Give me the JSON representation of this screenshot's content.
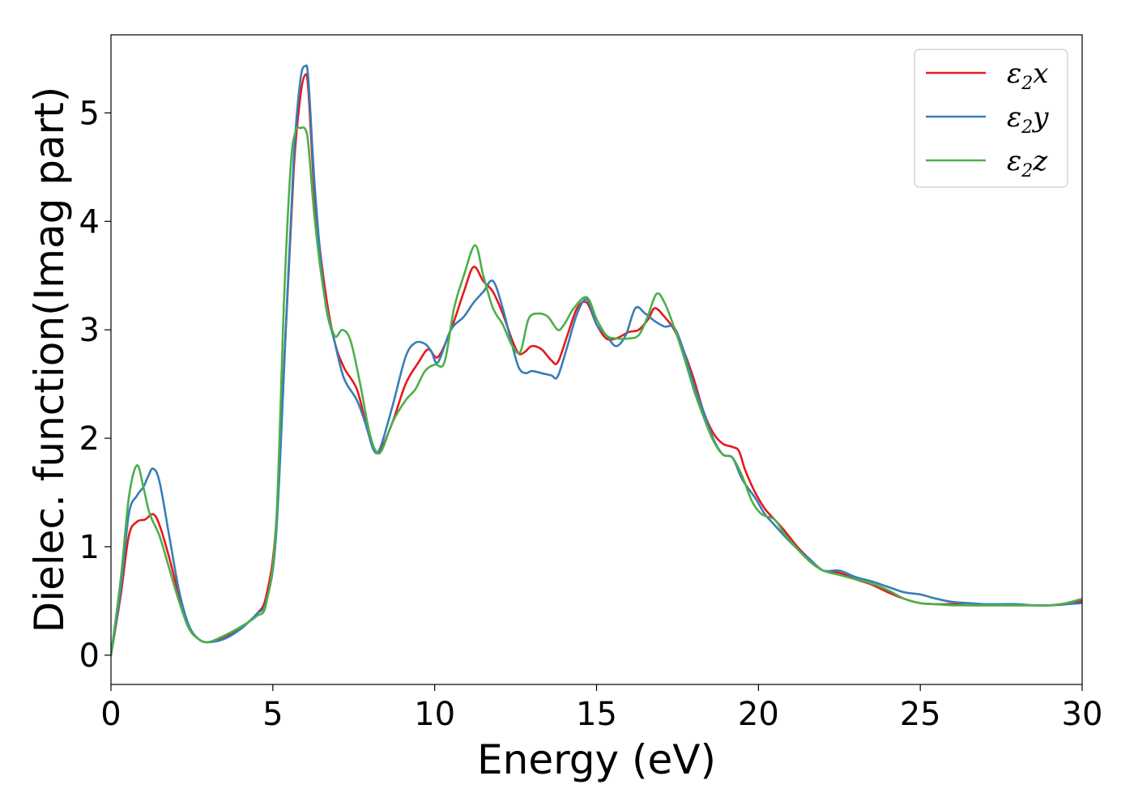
{
  "chart_data": {
    "type": "line",
    "xlabel": "Energy (eV)",
    "ylabel": "Dielec. function(Imag part)",
    "xlim": [
      0,
      30
    ],
    "ylim": [
      -0.27,
      5.72
    ],
    "xticks": [
      0,
      5,
      10,
      15,
      20,
      25,
      30
    ],
    "yticks": [
      0,
      1,
      2,
      3,
      4,
      5
    ],
    "grid": false,
    "legend_position": "top-right",
    "series": [
      {
        "name": "ε2x",
        "legend_base": "ε",
        "legend_sub": "2",
        "legend_tail": "x",
        "color": "#e41a1c",
        "x": [
          0,
          0.3,
          0.55,
          0.8,
          1.05,
          1.3,
          1.5,
          1.8,
          2.1,
          2.4,
          2.7,
          3.0,
          3.5,
          4.0,
          4.5,
          4.8,
          5.1,
          5.4,
          5.65,
          5.85,
          6.0,
          6.1,
          6.3,
          6.6,
          6.9,
          7.2,
          7.6,
          7.9,
          8.1,
          8.3,
          8.7,
          9.1,
          9.5,
          9.8,
          10.1,
          10.5,
          10.9,
          11.2,
          11.5,
          11.8,
          12.1,
          12.4,
          12.6,
          12.8,
          13.0,
          13.3,
          13.6,
          13.8,
          14.1,
          14.4,
          14.7,
          15.0,
          15.3,
          15.6,
          16.0,
          16.3,
          16.6,
          16.8,
          17.1,
          17.4,
          17.7,
          18.0,
          18.3,
          18.6,
          18.9,
          19.2,
          19.4,
          19.6,
          19.9,
          20.2,
          20.5,
          20.8,
          21.2,
          21.6,
          22.0,
          22.5,
          23.0,
          23.5,
          24.0,
          24.5,
          25.0,
          25.5,
          26.0,
          26.5,
          27.0,
          27.5,
          28.0,
          28.5,
          29.0,
          29.5,
          30.0
        ],
        "y": [
          0.0,
          0.55,
          1.1,
          1.23,
          1.25,
          1.3,
          1.2,
          0.9,
          0.55,
          0.27,
          0.15,
          0.12,
          0.17,
          0.25,
          0.38,
          0.55,
          1.2,
          3.0,
          4.5,
          5.15,
          5.35,
          5.2,
          4.2,
          3.4,
          2.9,
          2.65,
          2.45,
          2.1,
          1.92,
          1.88,
          2.15,
          2.5,
          2.7,
          2.82,
          2.75,
          3.0,
          3.35,
          3.58,
          3.45,
          3.35,
          3.15,
          2.9,
          2.78,
          2.8,
          2.85,
          2.82,
          2.72,
          2.7,
          2.95,
          3.2,
          3.25,
          3.05,
          2.92,
          2.92,
          2.98,
          3.0,
          3.1,
          3.2,
          3.12,
          3.0,
          2.8,
          2.55,
          2.25,
          2.05,
          1.95,
          1.92,
          1.88,
          1.7,
          1.5,
          1.35,
          1.25,
          1.15,
          1.0,
          0.88,
          0.78,
          0.76,
          0.7,
          0.65,
          0.58,
          0.52,
          0.48,
          0.47,
          0.47,
          0.46,
          0.46,
          0.46,
          0.46,
          0.46,
          0.46,
          0.47,
          0.5
        ]
      },
      {
        "name": "ε2y",
        "legend_base": "ε",
        "legend_sub": "2",
        "legend_tail": "y",
        "color": "#377eb8",
        "x": [
          0,
          0.3,
          0.55,
          0.8,
          1.0,
          1.15,
          1.3,
          1.5,
          1.8,
          2.1,
          2.4,
          2.7,
          3.0,
          3.5,
          4.0,
          4.5,
          4.8,
          5.1,
          5.4,
          5.65,
          5.85,
          6.0,
          6.1,
          6.3,
          6.6,
          6.9,
          7.2,
          7.6,
          7.9,
          8.1,
          8.3,
          8.7,
          9.1,
          9.4,
          9.7,
          9.9,
          10.1,
          10.5,
          10.9,
          11.2,
          11.5,
          11.8,
          12.1,
          12.4,
          12.6,
          12.8,
          13.0,
          13.3,
          13.6,
          13.8,
          14.1,
          14.4,
          14.7,
          15.0,
          15.3,
          15.6,
          15.9,
          16.2,
          16.5,
          16.8,
          17.1,
          17.4,
          17.7,
          18.0,
          18.3,
          18.6,
          18.9,
          19.2,
          19.5,
          19.9,
          20.2,
          20.5,
          20.8,
          21.2,
          21.6,
          22.0,
          22.5,
          23.0,
          23.5,
          24.0,
          24.5,
          25.0,
          25.5,
          26.0,
          26.5,
          27.0,
          27.5,
          28.0,
          28.5,
          29.0,
          29.5,
          30.0
        ],
        "y": [
          0.0,
          0.6,
          1.3,
          1.47,
          1.55,
          1.65,
          1.72,
          1.6,
          1.1,
          0.6,
          0.28,
          0.15,
          0.12,
          0.15,
          0.24,
          0.38,
          0.5,
          1.1,
          3.0,
          4.6,
          5.3,
          5.43,
          5.3,
          4.3,
          3.3,
          2.9,
          2.55,
          2.35,
          2.1,
          1.9,
          1.9,
          2.3,
          2.75,
          2.88,
          2.87,
          2.8,
          2.7,
          3.0,
          3.12,
          3.25,
          3.35,
          3.45,
          3.2,
          2.85,
          2.65,
          2.6,
          2.62,
          2.6,
          2.58,
          2.57,
          2.85,
          3.15,
          3.28,
          3.05,
          2.95,
          2.85,
          2.95,
          3.2,
          3.15,
          3.08,
          3.03,
          3.02,
          2.8,
          2.5,
          2.25,
          2.0,
          1.85,
          1.82,
          1.62,
          1.45,
          1.3,
          1.2,
          1.1,
          0.98,
          0.88,
          0.78,
          0.78,
          0.72,
          0.68,
          0.63,
          0.58,
          0.56,
          0.52,
          0.49,
          0.48,
          0.47,
          0.47,
          0.47,
          0.46,
          0.46,
          0.47,
          0.48
        ]
      },
      {
        "name": "ε2z",
        "legend_base": "ε",
        "legend_sub": "2",
        "legend_tail": "z",
        "color": "#4daf4a",
        "x": [
          0,
          0.3,
          0.55,
          0.8,
          1.0,
          1.2,
          1.5,
          1.8,
          2.1,
          2.4,
          2.7,
          3.0,
          3.5,
          4.0,
          4.5,
          4.8,
          5.1,
          5.35,
          5.55,
          5.7,
          5.85,
          6.0,
          6.1,
          6.3,
          6.6,
          6.9,
          7.15,
          7.4,
          7.7,
          7.95,
          8.15,
          8.35,
          8.7,
          9.1,
          9.4,
          9.7,
          10.0,
          10.3,
          10.6,
          10.9,
          11.25,
          11.5,
          11.8,
          12.1,
          12.4,
          12.65,
          12.9,
          13.2,
          13.5,
          13.8,
          14.0,
          14.3,
          14.7,
          15.0,
          15.3,
          15.6,
          16.0,
          16.3,
          16.55,
          16.85,
          17.1,
          17.4,
          17.7,
          18.0,
          18.3,
          18.6,
          18.9,
          19.2,
          19.5,
          19.8,
          20.1,
          20.5,
          20.8,
          21.2,
          21.6,
          22.0,
          22.5,
          23.0,
          23.5,
          24.0,
          24.5,
          25.0,
          25.5,
          26.0,
          26.5,
          27.0,
          27.5,
          28.0,
          28.5,
          29.0,
          29.5,
          30.0
        ],
        "y": [
          0.0,
          0.7,
          1.45,
          1.75,
          1.55,
          1.3,
          1.1,
          0.8,
          0.5,
          0.25,
          0.15,
          0.12,
          0.18,
          0.26,
          0.36,
          0.48,
          1.2,
          3.3,
          4.5,
          4.83,
          4.86,
          4.85,
          4.7,
          4.0,
          3.3,
          2.95,
          3.0,
          2.9,
          2.5,
          2.1,
          1.9,
          1.88,
          2.15,
          2.35,
          2.45,
          2.62,
          2.68,
          2.7,
          3.2,
          3.5,
          3.78,
          3.5,
          3.2,
          3.05,
          2.85,
          2.8,
          3.1,
          3.15,
          3.12,
          3.0,
          3.05,
          3.2,
          3.3,
          3.1,
          2.95,
          2.92,
          2.92,
          2.95,
          3.1,
          3.33,
          3.25,
          3.02,
          2.75,
          2.45,
          2.2,
          1.98,
          1.85,
          1.82,
          1.65,
          1.42,
          1.3,
          1.25,
          1.12,
          0.98,
          0.86,
          0.78,
          0.74,
          0.7,
          0.66,
          0.6,
          0.52,
          0.48,
          0.47,
          0.46,
          0.46,
          0.46,
          0.46,
          0.46,
          0.46,
          0.46,
          0.48,
          0.52
        ]
      }
    ]
  }
}
